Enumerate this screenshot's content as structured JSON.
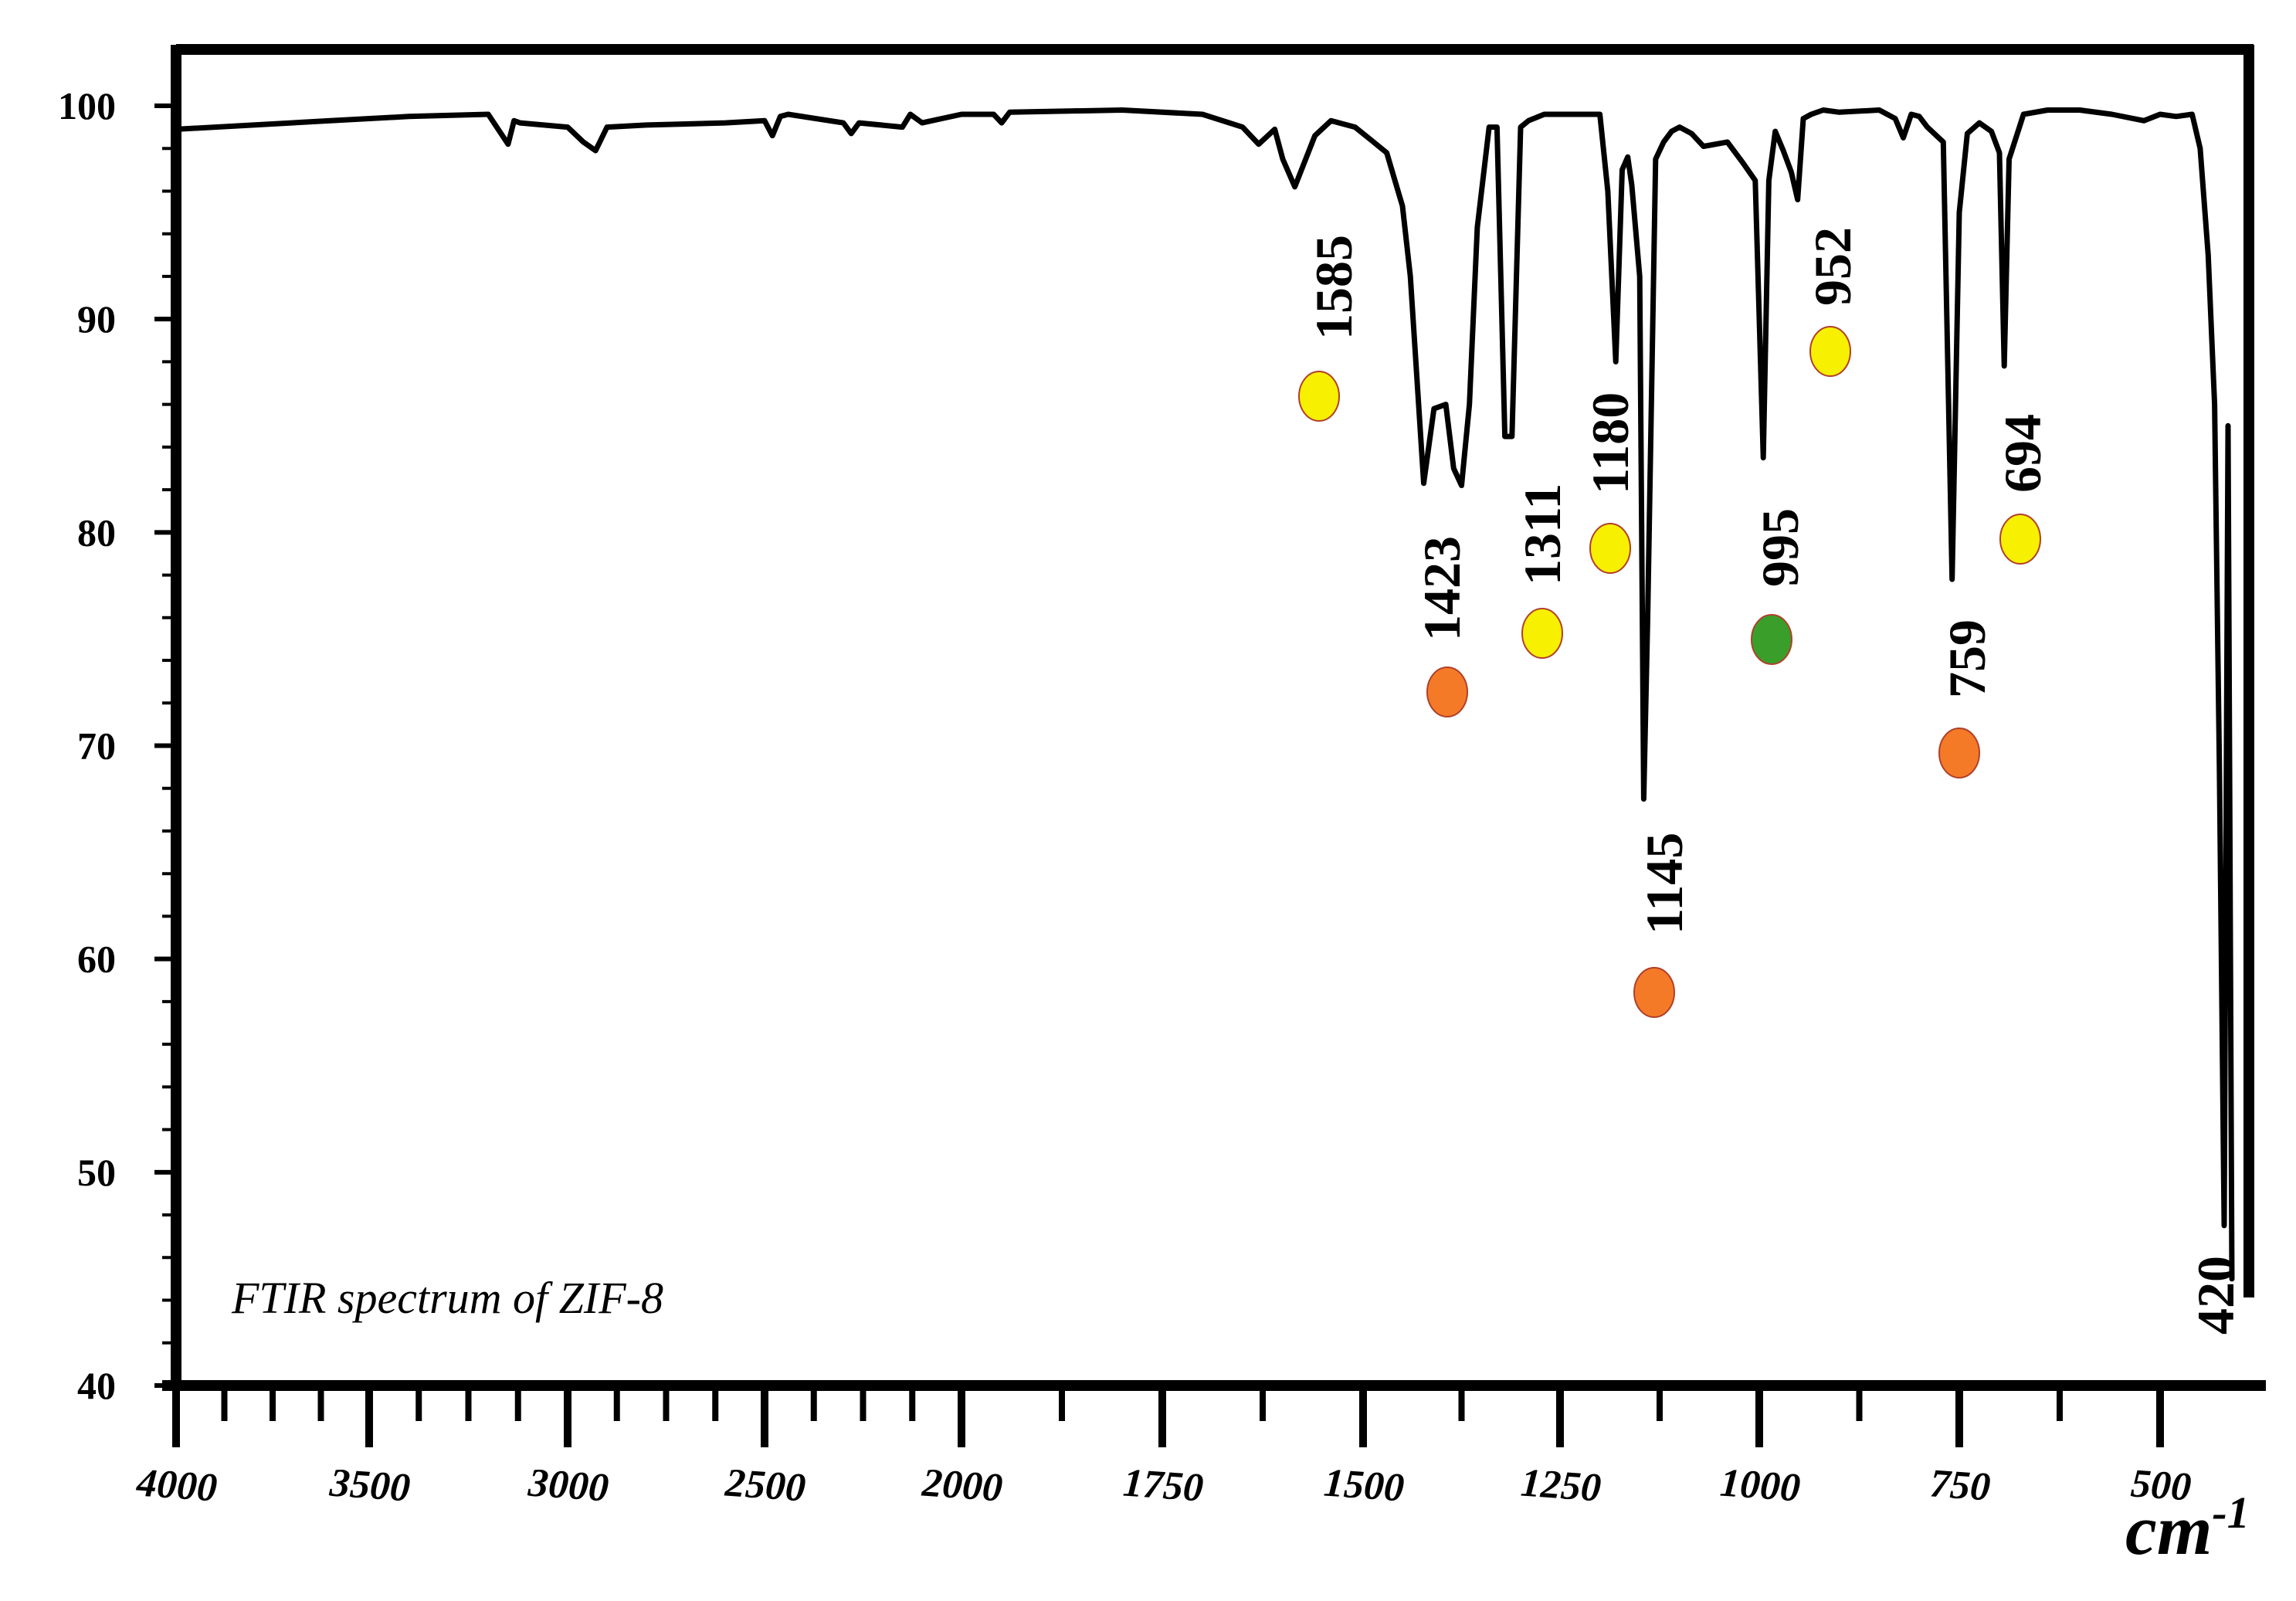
{
  "chart_data": {
    "type": "line",
    "title": "FTIR spectrum of ZIF-8",
    "xlabel": "cm",
    "xlabel_superscript": "-1",
    "ylabel": "",
    "xlim": [
      4000,
      420
    ],
    "ylim": [
      40,
      100
    ],
    "x_ticks": [
      4000,
      3500,
      3000,
      2500,
      2000,
      1750,
      1500,
      1250,
      1000,
      750,
      500
    ],
    "x_tick_labels": [
      "4000",
      "3500",
      "3000",
      "2500",
      "2000",
      "1750",
      "1500",
      "1250",
      "1000",
      "750",
      "500"
    ],
    "y_ticks": [
      40,
      50,
      60,
      70,
      80,
      90,
      100
    ],
    "y_tick_labels": [
      "40",
      "50",
      "60",
      "70",
      "80",
      "90",
      "100"
    ],
    "series": [
      {
        "name": "ZIF-8",
        "color": "#000000",
        "x": [
          4000,
          3800,
          3600,
          3400,
          3200,
          3150,
          3135,
          3120,
          3000,
          2960,
          2929,
          2900,
          2800,
          2600,
          2500,
          2480,
          2460,
          2440,
          2300,
          2280,
          2260,
          2150,
          2130,
          2100,
          2000,
          1960,
          1950,
          1940,
          1800,
          1700,
          1650,
          1630,
          1610,
          1600,
          1585,
          1560,
          1540,
          1510,
          1490,
          1470,
          1450,
          1440,
          1423,
          1410,
          1395,
          1385,
          1375,
          1365,
          1355,
          1340,
          1330,
          1320,
          1311,
          1300,
          1290,
          1270,
          1250,
          1200,
          1190,
          1180,
          1172,
          1165,
          1160,
          1150,
          1145,
          1140,
          1130,
          1120,
          1110,
          1100,
          1085,
          1070,
          1040,
          1020,
          1005,
          995,
          988,
          980,
          970,
          960,
          952,
          945,
          935,
          920,
          900,
          850,
          830,
          820,
          810,
          800,
          790,
          770,
          759,
          750,
          740,
          725,
          710,
          700,
          694,
          688,
          670,
          640,
          600,
          560,
          520,
          500,
          480,
          460,
          450,
          440,
          432,
          426,
          420,
          415,
          410
        ],
        "y": [
          98.9,
          99.1,
          99.3,
          99.5,
          99.6,
          98.2,
          99.3,
          99.2,
          99.0,
          98.3,
          97.9,
          99.0,
          99.1,
          99.2,
          99.3,
          98.6,
          99.5,
          99.6,
          99.2,
          98.7,
          99.2,
          99.0,
          99.6,
          99.2,
          99.6,
          99.6,
          99.2,
          99.7,
          99.8,
          99.6,
          99.0,
          98.2,
          98.9,
          97.5,
          96.2,
          98.6,
          99.3,
          99.0,
          98.4,
          97.8,
          95.3,
          92.0,
          82.3,
          85.8,
          86.0,
          83.0,
          82.2,
          86.0,
          94.3,
          99.0,
          99.0,
          84.5,
          84.5,
          99.0,
          99.3,
          99.6,
          99.6,
          99.6,
          96.0,
          88.0,
          97.0,
          97.6,
          96.3,
          92.0,
          67.5,
          76.0,
          97.5,
          98.3,
          98.8,
          99.0,
          98.7,
          98.1,
          98.3,
          97.3,
          96.5,
          83.5,
          96.5,
          98.8,
          97.9,
          96.9,
          95.6,
          99.4,
          99.6,
          99.8,
          99.7,
          99.8,
          99.4,
          98.5,
          99.6,
          99.5,
          99.0,
          98.3,
          77.8,
          95.0,
          98.7,
          99.2,
          98.8,
          97.8,
          87.8,
          97.5,
          99.6,
          99.8,
          99.8,
          99.6,
          99.3,
          99.6,
          99.5,
          99.6,
          98.0,
          93.0,
          86.0,
          69.0,
          47.5,
          85.0,
          45.0
        ]
      }
    ],
    "peaks": [
      {
        "label": "1585",
        "wavenumber": 1585,
        "marker_color": "#f7f000"
      },
      {
        "label": "1423",
        "wavenumber": 1423,
        "marker_color": "#f57a28"
      },
      {
        "label": "1311",
        "wavenumber": 1311,
        "marker_color": "#f7f000"
      },
      {
        "label": "1180",
        "wavenumber": 1180,
        "marker_color": "#f7f000"
      },
      {
        "label": "1145",
        "wavenumber": 1145,
        "marker_color": "#f57a28"
      },
      {
        "label": "995",
        "wavenumber": 995,
        "marker_color": "#3a9e2a"
      },
      {
        "label": "952",
        "wavenumber": 952,
        "marker_color": "#f7f000"
      },
      {
        "label": "759",
        "wavenumber": 759,
        "marker_color": "#f57a28"
      },
      {
        "label": "694",
        "wavenumber": 694,
        "marker_color": "#f7f000"
      },
      {
        "label": "420",
        "wavenumber": 420,
        "marker_color": ""
      }
    ],
    "grid": false,
    "legend": "none",
    "line_color": "#000000"
  }
}
